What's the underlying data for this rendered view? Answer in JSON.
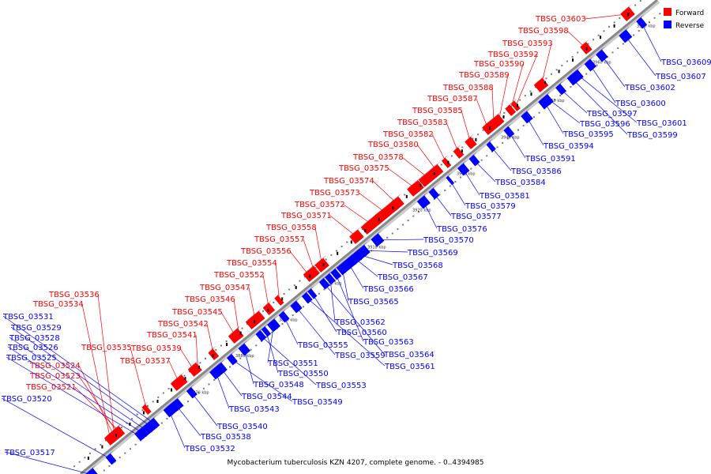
{
  "footer": {
    "caption": "Mycobacterium tuberculosis KZN 4207, complete genome. - 0..4394985"
  },
  "legend": {
    "items": [
      {
        "label": "Forward",
        "color": "#ff0000"
      },
      {
        "label": "Reverse",
        "color": "#0000ff"
      }
    ]
  },
  "colors": {
    "forward": "#ff0000",
    "reverse": "#0000ff",
    "axis": "#888888",
    "text": "#000000"
  },
  "ticks": [
    "3870 kbp",
    "3880 kbp",
    "3890 kbp",
    "3900 kbp",
    "3910 kbp",
    "3920 kbp",
    "3930 kbp",
    "3940 kbp",
    "3950 kbp",
    "3960 kbp",
    "3970 kbp"
  ],
  "genes": {
    "forward": [
      "TBSG_03536",
      "TBSG_03534",
      "TBSG_03535",
      "TBSG_03537",
      "TBSG_03524",
      "TBSG_03523",
      "TBSG_03521",
      "TBSG_03539",
      "TBSG_03541",
      "TBSG_03542",
      "TBSG_03545",
      "TBSG_03546",
      "TBSG_03547",
      "TBSG_03552",
      "TBSG_03554",
      "TBSG_03556",
      "TBSG_03557",
      "TBSG_03558",
      "TBSG_03571",
      "TBSG_03572",
      "TBSG_03573",
      "TBSG_03574",
      "TBSG_03575",
      "TBSG_03578",
      "TBSG_03580",
      "TBSG_03582",
      "TBSG_03583",
      "TBSG_03585",
      "TBSG_03587",
      "TBSG_03588",
      "TBSG_03589",
      "TBSG_03590",
      "TBSG_03592",
      "TBSG_03593",
      "TBSG_03598",
      "TBSG_03603"
    ],
    "reverse": [
      "TBSG_03517",
      "TBSG_03520",
      "TBSG_03525",
      "TBSG_03526",
      "TBSG_03528",
      "TBSG_03529",
      "TBSG_03531",
      "TBSG_03532",
      "TBSG_03538",
      "TBSG_03540",
      "TBSG_03543",
      "TBSG_03544",
      "TBSG_03549",
      "TBSG_03548",
      "TBSG_03553",
      "TBSG_03550",
      "TBSG_03551",
      "TBSG_03555",
      "TBSG_03559",
      "TBSG_03561",
      "TBSG_03560",
      "TBSG_03564",
      "TBSG_03562",
      "TBSG_03563",
      "TBSG_03565",
      "TBSG_03566",
      "TBSG_03567",
      "TBSG_03568",
      "TBSG_03569",
      "TBSG_03570",
      "TBSG_03576",
      "TBSG_03577",
      "TBSG_03579",
      "TBSG_03581",
      "TBSG_03584",
      "TBSG_03586",
      "TBSG_03591",
      "TBSG_03594",
      "TBSG_03595",
      "TBSG_03596",
      "TBSG_03597",
      "TBSG_03599",
      "TBSG_03601",
      "TBSG_03600",
      "TBSG_03602",
      "TBSG_03607",
      "TBSG_03609"
    ]
  }
}
